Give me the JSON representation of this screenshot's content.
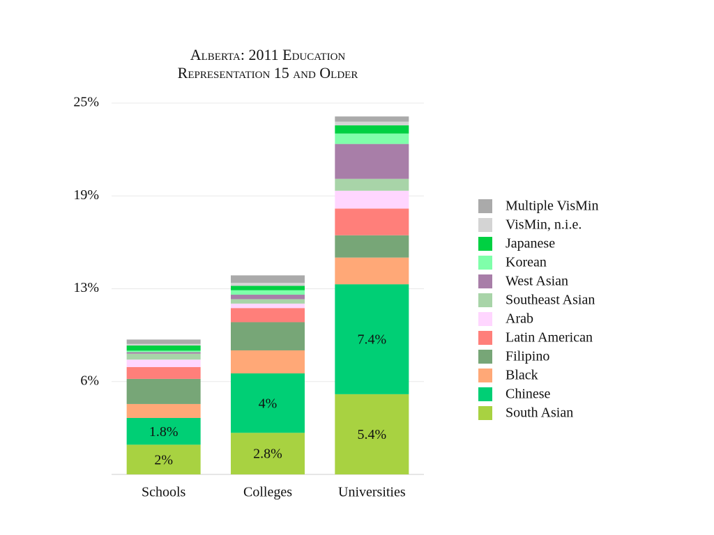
{
  "chart_data": {
    "type": "stacked_bar",
    "title": [
      "Alberta: 2011 Education",
      "Representation 15 and Older"
    ],
    "categories": [
      "Schools",
      "Colleges",
      "Universities"
    ],
    "ylim": [
      0,
      25
    ],
    "yticks": [
      {
        "value": 6.25,
        "label": "6%"
      },
      {
        "value": 12.5,
        "label": "13%"
      },
      {
        "value": 18.75,
        "label": "19%"
      },
      {
        "value": 25,
        "label": "25%"
      }
    ],
    "grid": true,
    "legend": "right",
    "series": [
      {
        "name": "South Asian",
        "color": "#a8d241",
        "values": [
          2,
          2.8,
          5.4
        ],
        "value_labels": [
          "2%",
          "2.8%",
          "5.4%"
        ]
      },
      {
        "name": "Chinese",
        "color": "#00cf75",
        "values": [
          1.8,
          4,
          7.4
        ],
        "value_labels": [
          "1.8%",
          "4%",
          "7.4%"
        ]
      },
      {
        "name": "Black",
        "color": "#ffa877",
        "values": [
          0.94,
          1.55,
          1.8
        ]
      },
      {
        "name": "Filipino",
        "color": "#77a677",
        "values": [
          1.69,
          1.9,
          1.5
        ]
      },
      {
        "name": "Latin American",
        "color": "#ff7f7a",
        "values": [
          0.8,
          0.95,
          1.8
        ]
      },
      {
        "name": "Arab",
        "color": "#ffd6ff",
        "values": [
          0.5,
          0.3,
          1.2
        ]
      },
      {
        "name": "Southeast Asian",
        "color": "#a8d4a8",
        "values": [
          0.4,
          0.3,
          0.8
        ]
      },
      {
        "name": "West Asian",
        "color": "#a87ea8",
        "values": [
          0.1,
          0.3,
          2.35
        ]
      },
      {
        "name": "Korean",
        "color": "#7fffaa",
        "values": [
          0.1,
          0.3,
          0.7
        ]
      },
      {
        "name": "Japanese",
        "color": "#00d042",
        "values": [
          0.35,
          0.3,
          0.55
        ]
      },
      {
        "name": "VisMin, n.i.e.",
        "color": "#d4d4d4",
        "values": [
          0.1,
          0.2,
          0.25
        ]
      },
      {
        "name": "Multiple VisMin",
        "color": "#aaaaaa",
        "values": [
          0.3,
          0.5,
          0.35
        ]
      }
    ]
  }
}
